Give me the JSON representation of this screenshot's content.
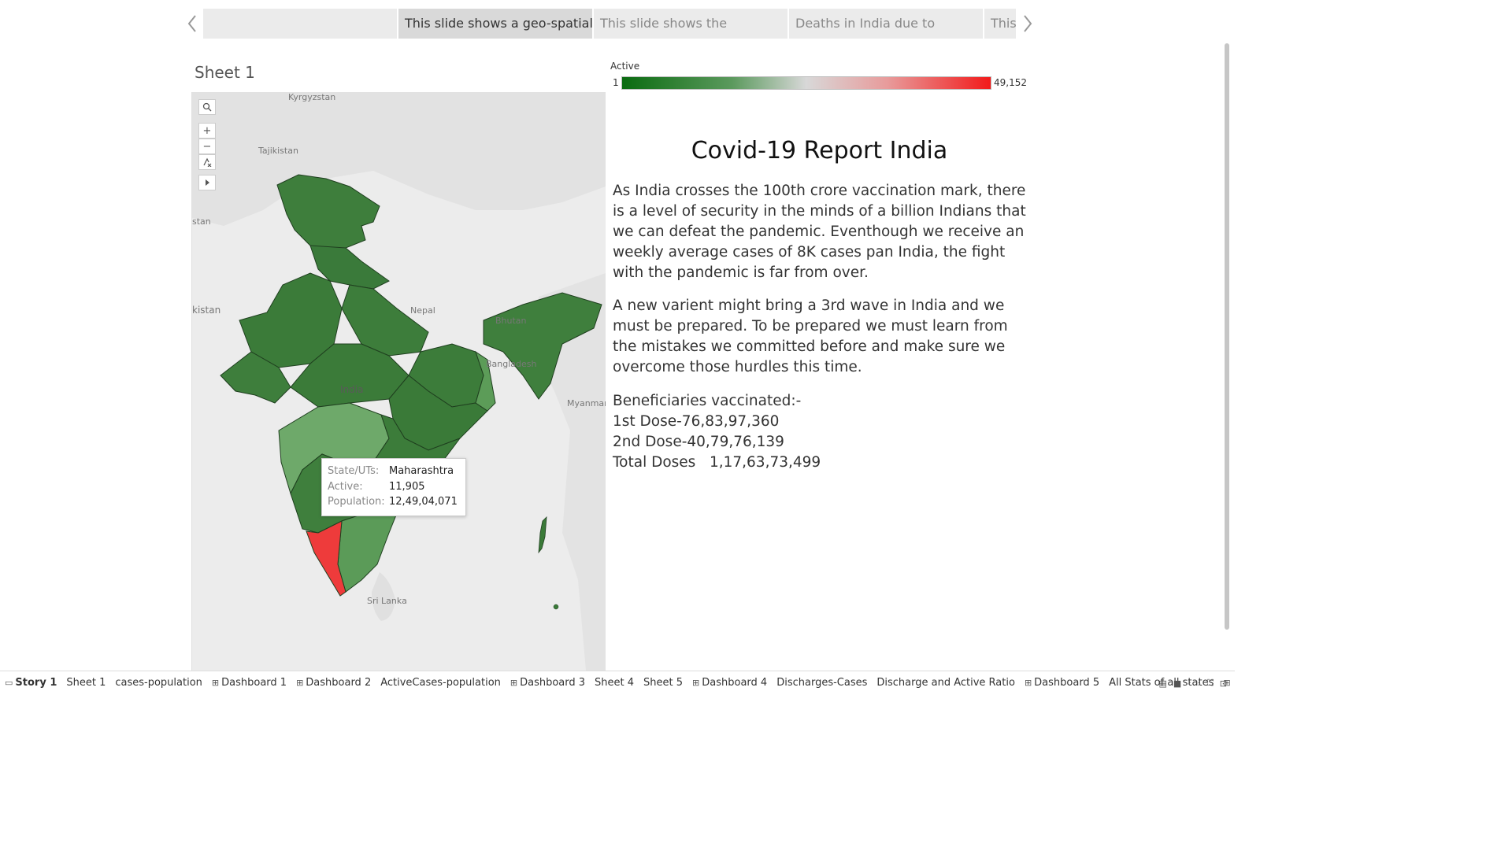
{
  "story": {
    "points": [
      {
        "label": ""
      },
      {
        "label": "This slide shows a geo-spatial"
      },
      {
        "label": "This slide shows the"
      },
      {
        "label": "Deaths in India due to"
      },
      {
        "label": "This"
      }
    ]
  },
  "sheet_title": "Sheet 1",
  "map": {
    "labels": {
      "kyrgyzstan": "Kyrgyzstan",
      "tajikistan": "Tajikistan",
      "stan": "stan",
      "kistan": "kistan",
      "nepal": "Nepal",
      "bhutan": "Bhutan",
      "bangladesh": "Bangladesh",
      "india": "India",
      "myanmar": "Myanmar",
      "srilanka": "Sri Lanka"
    },
    "colors": {
      "dark": "#3a7a3a",
      "mid": "#5a9a5a",
      "light": "#6ea96a",
      "high": "#ee3b3b"
    }
  },
  "tooltip": {
    "state_key": "State/UTs:",
    "state_val": "Maharashtra",
    "active_key": "Active:",
    "active_val": "11,905",
    "pop_key": "Population:",
    "pop_val": "12,49,04,071"
  },
  "legend": {
    "title": "Active",
    "min": "1",
    "max": "49,152"
  },
  "report": {
    "title": "Covid-19 Report India",
    "para1": "As India crosses the 100th crore vaccination mark, there is a level of security in the minds of a billion Indians that we can defeat the pandemic. Eventhough we receive an weekly average cases of 8K cases pan India, the fight with the pandemic is far from over.",
    "para2": "A new varient might bring a 3rd wave in India and we must be prepared. To  be prepared we must learn from the mistakes we committed before and make sure we overcome those hurdles this time.",
    "vacc_title": "Beneficiaries vaccinated:-",
    "dose1": "1st Dose-76,83,97,360",
    "dose2": "2nd Dose-40,79,76,139",
    "total": "Total Doses   1,17,63,73,499"
  },
  "tabs": [
    {
      "label": "Story 1",
      "icon": "story"
    },
    {
      "label": "Sheet 1",
      "icon": ""
    },
    {
      "label": "cases-population",
      "icon": ""
    },
    {
      "label": "Dashboard 1",
      "icon": "dashboard"
    },
    {
      "label": "Dashboard 2",
      "icon": "dashboard"
    },
    {
      "label": "ActiveCases-population",
      "icon": ""
    },
    {
      "label": "Dashboard 3",
      "icon": "dashboard"
    },
    {
      "label": "Sheet 4",
      "icon": ""
    },
    {
      "label": "Sheet 5",
      "icon": ""
    },
    {
      "label": "Dashboard 4",
      "icon": "dashboard"
    },
    {
      "label": "Discharges-Cases",
      "icon": ""
    },
    {
      "label": "Discharge and Active Ratio",
      "icon": ""
    },
    {
      "label": "Dashboard 5",
      "icon": "dashboard"
    },
    {
      "label": "All Stats of all states",
      "icon": ""
    }
  ]
}
